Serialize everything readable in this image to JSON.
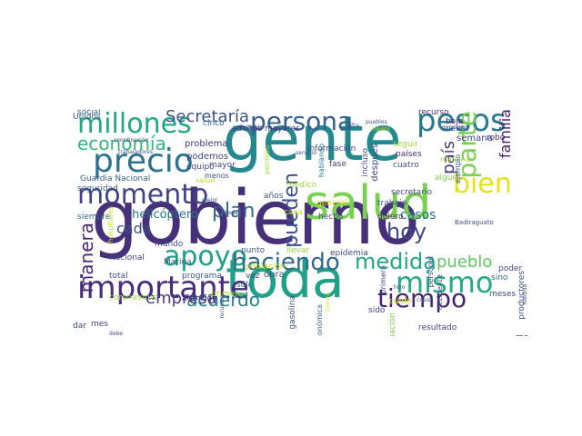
{
  "words": [
    {
      "text": "gobierno",
      "color": "#46307a",
      "orientation": "horizontal"
    },
    {
      "text": "gente",
      "color": "#23898e",
      "orientation": "horizontal"
    },
    {
      "text": "toda",
      "color": "#1fa187",
      "orientation": "horizontal"
    },
    {
      "text": "salud",
      "color": "#7ad151",
      "orientation": "horizontal"
    },
    {
      "text": "millones",
      "color": "#22a884",
      "orientation": "horizontal"
    },
    {
      "text": "persona",
      "color": "#355f8d",
      "orientation": "horizontal"
    },
    {
      "text": "pesos",
      "color": "#2a788e",
      "orientation": "horizontal"
    },
    {
      "text": "precio",
      "color": "#2c728e",
      "orientation": "horizontal"
    },
    {
      "text": "Secretaría",
      "color": "#3b528b",
      "orientation": "horizontal"
    },
    {
      "text": "economía",
      "color": "#35b779",
      "orientation": "horizontal"
    },
    {
      "text": "momento",
      "color": "#414487",
      "orientation": "horizontal"
    },
    {
      "text": "plan",
      "color": "#31688e",
      "orientation": "horizontal"
    },
    {
      "text": "cada",
      "color": "#3b528b",
      "orientation": "horizontal"
    },
    {
      "text": "bien",
      "color": "#e4e319",
      "orientation": "horizontal"
    },
    {
      "text": "parte",
      "color": "#7ad151",
      "orientation": "vertical"
    },
    {
      "text": "apoyo",
      "color": "#1fa187",
      "orientation": "horizontal"
    },
    {
      "text": "haciendo",
      "color": "#31688e",
      "orientation": "horizontal"
    },
    {
      "text": "medida",
      "color": "#22a884",
      "orientation": "horizontal"
    },
    {
      "text": "mismo",
      "color": "#25ab82",
      "orientation": "horizontal"
    },
    {
      "text": "importante",
      "color": "#472d7b",
      "orientation": "horizontal"
    },
    {
      "text": "tiempo",
      "color": "#482475",
      "orientation": "horizontal"
    },
    {
      "text": "acuerdo",
      "color": "#26828e",
      "orientation": "horizontal"
    },
    {
      "text": "empresa",
      "color": "#433e85",
      "orientation": "horizontal"
    },
    {
      "text": "pueblo",
      "color": "#5ec962",
      "orientation": "horizontal"
    },
    {
      "text": "hoy",
      "color": "#3e4989",
      "orientation": "horizontal"
    },
    {
      "text": "casos",
      "color": "#2d708e",
      "orientation": "horizontal"
    },
    {
      "text": "manera",
      "color": "#482878",
      "orientation": "vertical"
    },
    {
      "text": "pueden",
      "color": "#3b528b",
      "orientation": "vertical"
    },
    {
      "text": "país",
      "color": "#443983",
      "orientation": "vertical"
    },
    {
      "text": "familia",
      "color": "#481f70",
      "orientation": "vertical"
    },
    {
      "text": "semana",
      "color": "#404688",
      "orientation": "horizontal"
    },
    {
      "text": "helicóptero",
      "color": "#2a788e",
      "orientation": "horizontal"
    },
    {
      "text": "obra",
      "color": "#3b528b",
      "orientation": "horizontal"
    },
    {
      "text": "problema",
      "color": "#46327e",
      "orientation": "horizontal"
    },
    {
      "text": "podemos",
      "color": "#404688",
      "orientation": "horizontal"
    },
    {
      "text": "equipo",
      "color": "#3e4a89",
      "orientation": "horizontal"
    },
    {
      "text": "mayor",
      "color": "#404688",
      "orientation": "horizontal"
    },
    {
      "text": "fase",
      "color": "#433e85",
      "orientation": "horizontal"
    },
    {
      "text": "después",
      "color": "#3e4a89",
      "orientation": "vertical"
    },
    {
      "text": "cuatro",
      "color": "#3b528b",
      "orientation": "horizontal"
    },
    {
      "text": "mañana",
      "color": "#a2da37",
      "orientation": "horizontal"
    },
    {
      "text": "seguir",
      "color": "#a5db36",
      "orientation": "horizontal"
    },
    {
      "text": "países",
      "color": "#46307e",
      "orientation": "horizontal"
    },
    {
      "text": "robo",
      "color": "#472d7b",
      "orientation": "horizontal"
    },
    {
      "text": "cuenta",
      "color": "#34618d",
      "orientation": "horizontal"
    },
    {
      "text": "recurso",
      "color": "#472c7a",
      "orientation": "horizontal"
    },
    {
      "text": "baja",
      "color": "#481f70",
      "orientation": "horizontal"
    },
    {
      "text": "secretario",
      "color": "#3f4788",
      "orientation": "horizontal"
    },
    {
      "text": "algún",
      "color": "#7fd34e",
      "orientation": "horizontal"
    },
    {
      "text": "adultos mayores",
      "color": "#443983",
      "orientation": "horizontal"
    },
    {
      "text": "cinco",
      "color": "#2c728e",
      "orientation": "horizontal"
    },
    {
      "text": "social",
      "color": "#31688e",
      "orientation": "horizontal"
    },
    {
      "text": "Unidos",
      "color": "#3b528b",
      "orientation": "horizontal"
    },
    {
      "text": "mexicano",
      "color": "#39568c",
      "orientation": "vertical"
    },
    {
      "text": "Guardia Nacional",
      "color": "#34618d",
      "orientation": "horizontal"
    },
    {
      "text": "seguridad",
      "color": "#375a8c",
      "orientation": "horizontal"
    },
    {
      "text": "siempre",
      "color": "#31688e",
      "orientation": "horizontal"
    },
    {
      "text": "mundo",
      "color": "#3e4989",
      "orientation": "horizontal"
    },
    {
      "text": "Nacional",
      "color": "#404688",
      "orientation": "horizontal"
    },
    {
      "text": "total",
      "color": "#3b528b",
      "orientation": "horizontal"
    },
    {
      "text": "coronavirus",
      "color": "#a2da37",
      "orientation": "horizontal"
    },
    {
      "text": "dar",
      "color": "#3e4989",
      "orientation": "horizontal"
    },
    {
      "text": "mes",
      "color": "#404688",
      "orientation": "horizontal"
    },
    {
      "text": "Marina",
      "color": "#3b528b",
      "orientation": "horizontal"
    },
    {
      "text": "atención",
      "color": "#482173",
      "orientation": "horizontal"
    },
    {
      "text": "programa",
      "color": "#39568c",
      "orientation": "horizontal"
    },
    {
      "text": "primero",
      "color": "#b5de2b",
      "orientation": "horizontal"
    },
    {
      "text": "sólo",
      "color": "#31688e",
      "orientation": "horizontal"
    },
    {
      "text": "vez",
      "color": "#404688",
      "orientation": "horizontal"
    },
    {
      "text": "población",
      "color": "#b5de2b",
      "orientation": "horizontal"
    },
    {
      "text": "punto",
      "color": "#375a8c",
      "orientation": "horizontal"
    },
    {
      "text": "llevar",
      "color": "#93d741",
      "orientation": "horizontal"
    },
    {
      "text": "años",
      "color": "#3b528b",
      "orientation": "horizontal"
    },
    {
      "text": "casa",
      "color": "#c2df23",
      "orientation": "horizontal"
    },
    {
      "text": "hecho",
      "color": "#3e4989",
      "orientation": "horizontal"
    },
    {
      "text": "general",
      "color": "#d2e21b",
      "orientation": "horizontal"
    },
    {
      "text": "epidemia",
      "color": "#3e4989",
      "orientation": "horizontal"
    },
    {
      "text": "trabajo",
      "color": "#3b528b",
      "orientation": "horizontal"
    },
    {
      "text": "quiero",
      "color": "#481f70",
      "orientation": "horizontal"
    },
    {
      "text": "cuido",
      "color": "#d2e21b",
      "orientation": "horizontal"
    },
    {
      "text": "sido",
      "color": "#404688",
      "orientation": "horizontal"
    },
    {
      "text": "económica",
      "color": "#31688e",
      "orientation": "vertical"
    },
    {
      "text": "gasolina",
      "color": "#3b528b",
      "orientation": "vertical"
    },
    {
      "text": "situación",
      "color": "#81d34d",
      "orientation": "vertical"
    },
    {
      "text": "primera",
      "color": "#3e4989",
      "orientation": "vertical"
    },
    {
      "text": "personal",
      "color": "#404688",
      "orientation": "vertical"
    },
    {
      "text": "accidente",
      "color": "#3b528b",
      "orientation": "vertical"
    },
    {
      "text": "poder",
      "color": "#3e4a89",
      "orientation": "horizontal"
    },
    {
      "text": "sino",
      "color": "#31688e",
      "orientation": "horizontal"
    },
    {
      "text": "meses",
      "color": "#3e4989",
      "orientation": "horizontal"
    },
    {
      "text": "productores",
      "color": "#3b528b",
      "orientation": "vertical"
    },
    {
      "text": "resultado",
      "color": "#404688",
      "orientation": "horizontal"
    },
    {
      "text": "materia",
      "color": "#481f70",
      "orientation": "horizontal"
    },
    {
      "text": "información",
      "color": "#3e4989",
      "orientation": "horizontal"
    },
    {
      "text": "hablando",
      "color": "#2a788e",
      "orientation": "vertical"
    },
    {
      "text": "médico",
      "color": "#a0da39",
      "orientation": "horizontal"
    },
    {
      "text": "incluso",
      "color": "#3e4989",
      "orientation": "vertical"
    },
    {
      "text": "hospitales",
      "color": "#c2df23",
      "orientation": "vertical"
    },
    {
      "text": "salud",
      "color": "#bddf26",
      "orientation": "horizontal"
    },
    {
      "text": "permiso",
      "color": "#a5db36",
      "orientation": "vertical"
    },
    {
      "text": "menos",
      "color": "#3b528b",
      "orientation": "horizontal"
    },
    {
      "text": "ejemplo",
      "color": "#3b528b",
      "orientation": "vertical"
    },
    {
      "text": "coordinación",
      "color": "#3e4989",
      "orientation": "horizontal"
    },
    {
      "text": "corrupción",
      "color": "#404688",
      "orientation": "horizontal"
    },
    {
      "text": "trabajadores",
      "color": "#3b528b",
      "orientation": "horizontal"
    },
    {
      "text": "pueblos",
      "color": "#3b528b",
      "orientation": "horizontal"
    },
    {
      "text": "proceso",
      "color": "#3e4989",
      "orientation": "horizontal"
    },
    {
      "text": "crédito",
      "color": "#c2df23",
      "orientation": "horizontal"
    },
    {
      "text": "servicio",
      "color": "#3b528b",
      "orientation": "horizontal"
    },
    {
      "text": "todavía",
      "color": "#404688",
      "orientation": "horizontal"
    },
    {
      "text": "mejor",
      "color": "#3b528b",
      "orientation": "horizontal"
    },
    {
      "text": "cifra",
      "color": "#3e4989",
      "orientation": "horizontal"
    },
    {
      "text": "crisis",
      "color": "#3b528b",
      "orientation": "horizontal"
    },
    {
      "text": "Sonora",
      "color": "#d2e21b",
      "orientation": "vertical"
    },
    {
      "text": "recursos",
      "color": "#3b528b",
      "orientation": "vertical"
    },
    {
      "text": "debe",
      "color": "#3e4989",
      "orientation": "horizontal"
    },
    {
      "text": "hizo",
      "color": "#3b528b",
      "orientation": "horizontal"
    },
    {
      "text": "Badiraguato",
      "color": "#3b528b",
      "orientation": "horizontal"
    },
    {
      "text": "medida",
      "color": "#3b528b",
      "orientation": "vertical"
    },
    {
      "text": "vida",
      "color": "#c2df23",
      "orientation": "horizontal"
    },
    {
      "text": "región",
      "color": "#3e4989",
      "orientation": "horizontal"
    }
  ]
}
